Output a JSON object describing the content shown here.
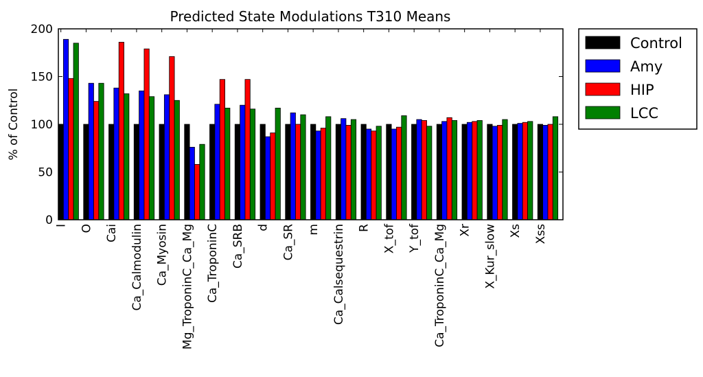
{
  "chart_data": {
    "type": "bar",
    "title": "Predicted State Modulations T310 Means",
    "xlabel": "",
    "ylabel": "% of Control",
    "ylim": [
      0,
      200
    ],
    "yticks": [
      0,
      50,
      100,
      150,
      200
    ],
    "grid": false,
    "legend_position": "outside-top-right",
    "categories": [
      "I",
      "O",
      "Cai",
      "Ca_Calmodulin",
      "Ca_Myosin",
      "Mg_TroponinC_Ca_Mg",
      "Ca_TroponinC",
      "Ca_SRB",
      "d",
      "Ca_SR",
      "m",
      "Ca_Calsequestrin",
      "R",
      "X_tof",
      "Y_tof",
      "Ca_TroponinC_Ca_Mg",
      "Xr",
      "X_Kur_slow",
      "Xs",
      "Xss"
    ],
    "series": [
      {
        "name": "Control",
        "color": "#000000",
        "values": [
          100,
          100,
          100,
          100,
          100,
          100,
          100,
          100,
          100,
          100,
          100,
          100,
          100,
          100,
          100,
          100,
          100,
          100,
          100,
          100
        ]
      },
      {
        "name": "Amy",
        "color": "#0000ff",
        "values": [
          189,
          143,
          138,
          135,
          131,
          76,
          121,
          120,
          87,
          112,
          93,
          106,
          95,
          95,
          105,
          103,
          102,
          98,
          101,
          99
        ]
      },
      {
        "name": "HIP",
        "color": "#ff0000",
        "values": [
          148,
          124,
          186,
          179,
          171,
          58,
          147,
          147,
          91,
          100,
          96,
          99,
          93,
          97,
          104,
          107,
          103,
          99,
          102,
          100
        ]
      },
      {
        "name": "LCC",
        "color": "#008000",
        "values": [
          185,
          143,
          132,
          129,
          125,
          79,
          117,
          116,
          117,
          110,
          108,
          105,
          98,
          109,
          98,
          104,
          104,
          105,
          103,
          108
        ]
      }
    ]
  }
}
